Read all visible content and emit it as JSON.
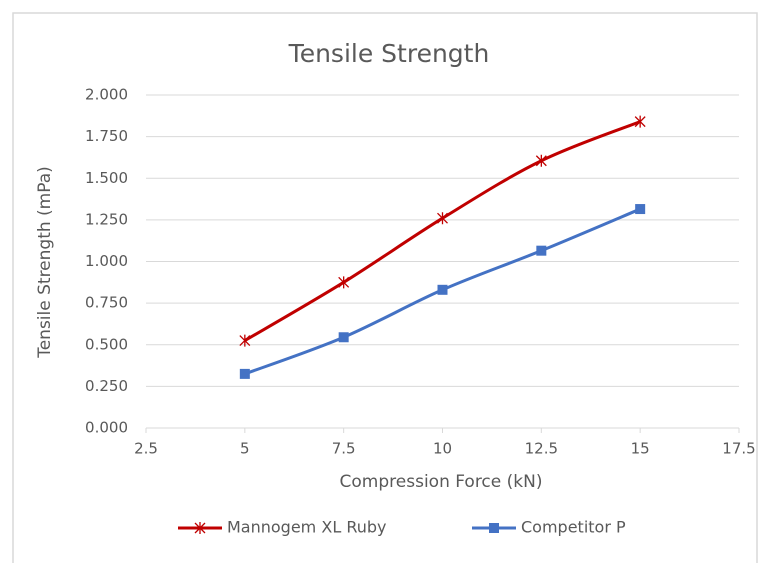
{
  "chart_data": {
    "type": "line",
    "title": "Tensile Strength",
    "x_label": "Compression Force (kN)",
    "y_label": "Tensile Strength (mPa)",
    "x": [
      5,
      7.5,
      10,
      12.5,
      15
    ],
    "series": [
      {
        "name": "Mannogem XL Ruby",
        "color": "#c00000",
        "marker": "asterisk",
        "values": [
          0.525,
          0.875,
          1.26,
          1.605,
          1.84
        ]
      },
      {
        "name": "Competitor P",
        "color": "#4472c4",
        "marker": "square",
        "values": [
          0.325,
          0.545,
          0.83,
          1.065,
          1.315
        ]
      }
    ],
    "xlim": [
      2.5,
      17.5
    ],
    "xticks": [
      2.5,
      5,
      7.5,
      10,
      12.5,
      15,
      17.5
    ],
    "ylim": [
      0,
      2
    ],
    "yticks": [
      {
        "value": 0,
        "label": "0.000"
      },
      {
        "value": 0.25,
        "label": "0.250"
      },
      {
        "value": 0.5,
        "label": "0.500"
      },
      {
        "value": 0.75,
        "label": "0.750"
      },
      {
        "value": 1,
        "label": "1.000"
      },
      {
        "value": 1.25,
        "label": "1.250"
      },
      {
        "value": 1.5,
        "label": "1.500"
      },
      {
        "value": 1.75,
        "label": "1.750"
      },
      {
        "value": 2,
        "label": "2.000"
      }
    ],
    "grid": true,
    "smooth": true,
    "legend": "bottom"
  }
}
